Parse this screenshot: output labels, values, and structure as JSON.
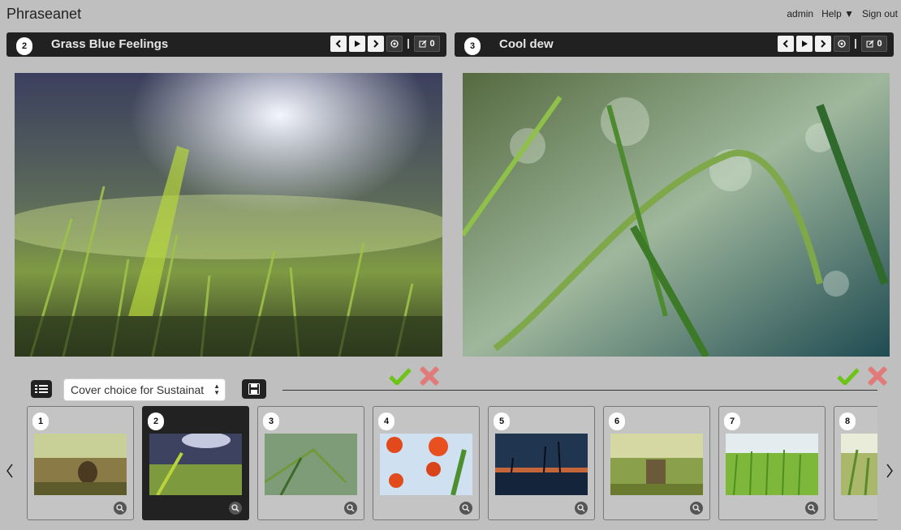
{
  "app": {
    "title": "Phraseanet"
  },
  "nav": {
    "user": "admin",
    "help": "Help ▼",
    "signout": "Sign out"
  },
  "left_panel": {
    "index": "2",
    "title": "Grass Blue Feelings",
    "edit_count": "0"
  },
  "right_panel": {
    "index": "3",
    "title": "Cool dew",
    "edit_count": "0"
  },
  "toolbar": {
    "select_value": "Cover choice for Sustainat"
  },
  "thumbnails": [
    {
      "num": "1"
    },
    {
      "num": "2"
    },
    {
      "num": "3"
    },
    {
      "num": "4"
    },
    {
      "num": "5"
    },
    {
      "num": "6"
    },
    {
      "num": "7"
    },
    {
      "num": "8"
    }
  ],
  "colors": {
    "header_bg": "#212121",
    "page_bg": "#bfbfbf",
    "approve": "#6cc417",
    "reject": "#e06060"
  }
}
